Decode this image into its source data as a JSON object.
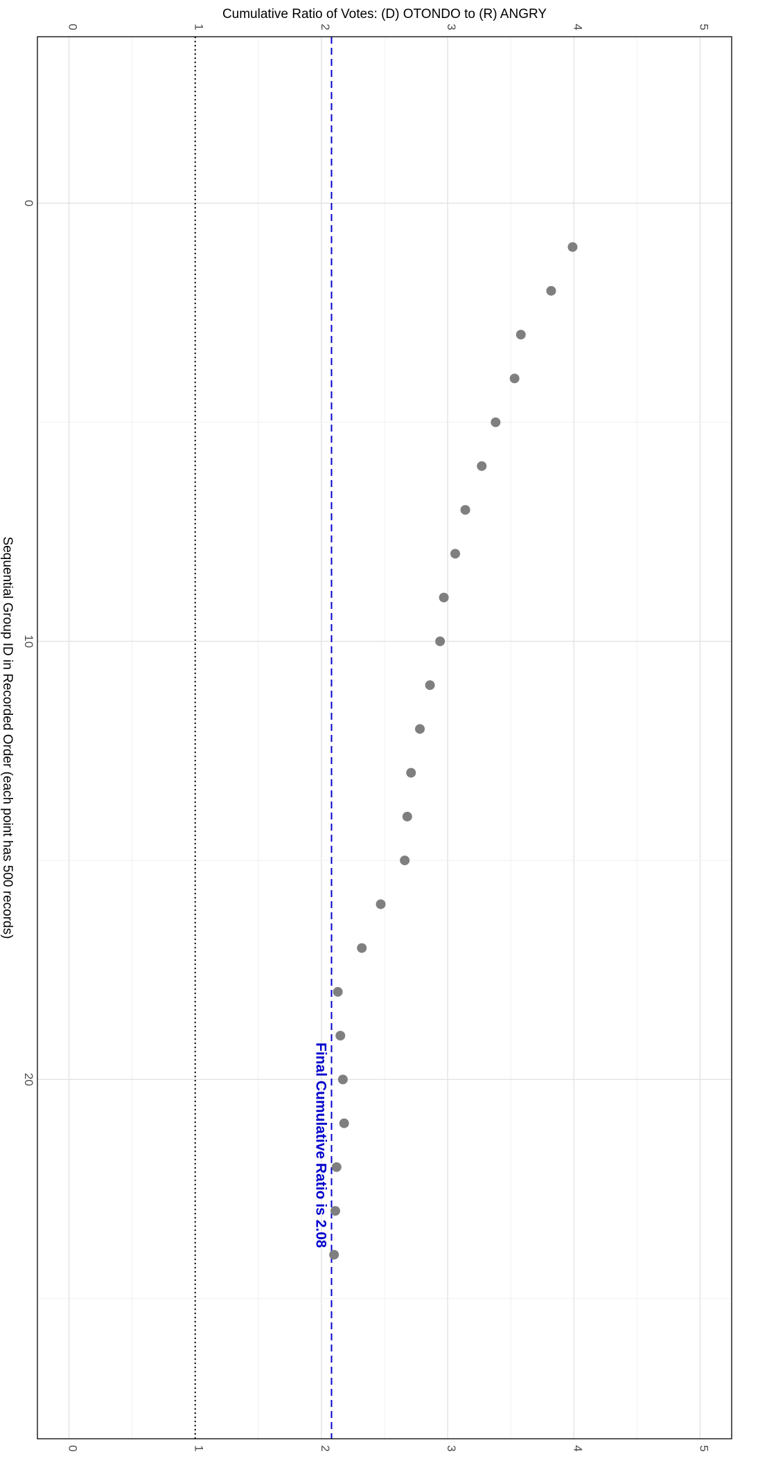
{
  "chart_data": {
    "type": "scatter",
    "title": "",
    "xlabel": "Sequential Group ID in Recorded Order (each point has 500 records)",
    "ylabel": "Cumulative Ratio of Votes:   (D) OTONDO  to  (R) ANGRY",
    "xlim": [
      -3.8,
      28.2
    ],
    "ylim": [
      -0.25,
      5.25
    ],
    "x_ticks": [
      "0",
      "10",
      "20"
    ],
    "x_tick_values": [
      0,
      10,
      20
    ],
    "y_ticks": [
      "0",
      "1",
      "2",
      "3",
      "4",
      "5"
    ],
    "y_tick_values": [
      0,
      1,
      2,
      3,
      4,
      5
    ],
    "grid": true,
    "orientation": "rotated 90 degrees clockwise",
    "point_color": "#7f7f7f",
    "reference_line": {
      "value": 1,
      "style": "dotted",
      "color": "#000000"
    },
    "final_line": {
      "value": 2.08,
      "style": "dashed",
      "color": "#0000cc"
    },
    "annotation": {
      "text": "Final Cumulative Ratio is 2.08",
      "color": "#0000cc"
    },
    "x": [
      1,
      2,
      3,
      4,
      5,
      6,
      7,
      8,
      9,
      10,
      11,
      12,
      13,
      14,
      15,
      16,
      17,
      18,
      19,
      20,
      21,
      22,
      23,
      24
    ],
    "y": [
      3.99,
      3.82,
      3.58,
      3.53,
      3.38,
      3.27,
      3.14,
      3.06,
      2.97,
      2.94,
      2.86,
      2.78,
      2.71,
      2.68,
      2.66,
      2.47,
      2.32,
      2.13,
      2.15,
      2.17,
      2.18,
      2.12,
      2.11,
      2.1
    ]
  }
}
